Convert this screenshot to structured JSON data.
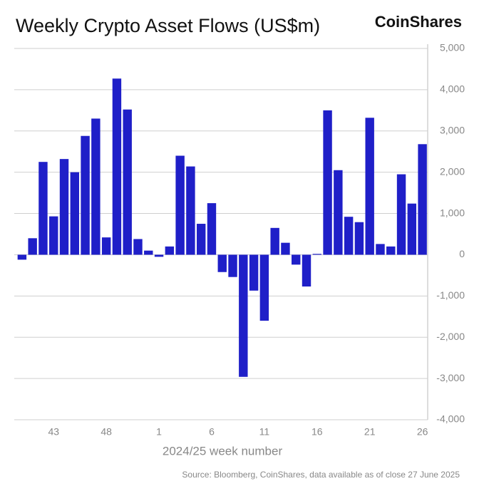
{
  "chart_data": {
    "type": "bar",
    "title": "Weekly Crypto Asset Flows (US$m)",
    "brand": "CoinShares",
    "x_label": "2024/25 week number",
    "source": "Source: Bloomberg, CoinShares, data available as of close 27 June 2025",
    "categories": [
      null,
      null,
      null,
      "43",
      null,
      null,
      null,
      null,
      "48",
      null,
      null,
      null,
      null,
      "1",
      null,
      null,
      null,
      null,
      "6",
      null,
      null,
      null,
      null,
      "11",
      null,
      null,
      null,
      null,
      "16",
      null,
      null,
      null,
      null,
      "21",
      null,
      null,
      null,
      null,
      "26"
    ],
    "values": [
      -120,
      400,
      2250,
      930,
      2320,
      2000,
      2880,
      3300,
      420,
      4270,
      3520,
      380,
      100,
      -50,
      200,
      2400,
      2140,
      750,
      1250,
      -420,
      -540,
      -2960,
      -870,
      -1600,
      650,
      290,
      -240,
      -770,
      20,
      3500,
      2050,
      920,
      790,
      3320,
      260,
      200,
      1950,
      1240,
      2680
    ],
    "color": "#1f1fc8",
    "ylim": [
      -4000,
      5000
    ],
    "yticks": [
      {
        "value": -4000,
        "label": "-4,000"
      },
      {
        "value": -3000,
        "label": "-3,000"
      },
      {
        "value": -2000,
        "label": "-2,000"
      },
      {
        "value": -1000,
        "label": "-1,000"
      },
      0,
      {
        "value": 1000,
        "label": "1,000"
      },
      {
        "value": 2000,
        "label": "2,000"
      },
      {
        "value": 3000,
        "label": "3,000"
      },
      {
        "value": 4000,
        "label": "4,000"
      },
      {
        "value": 5000,
        "label": "5,000"
      }
    ],
    "grid": true
  }
}
